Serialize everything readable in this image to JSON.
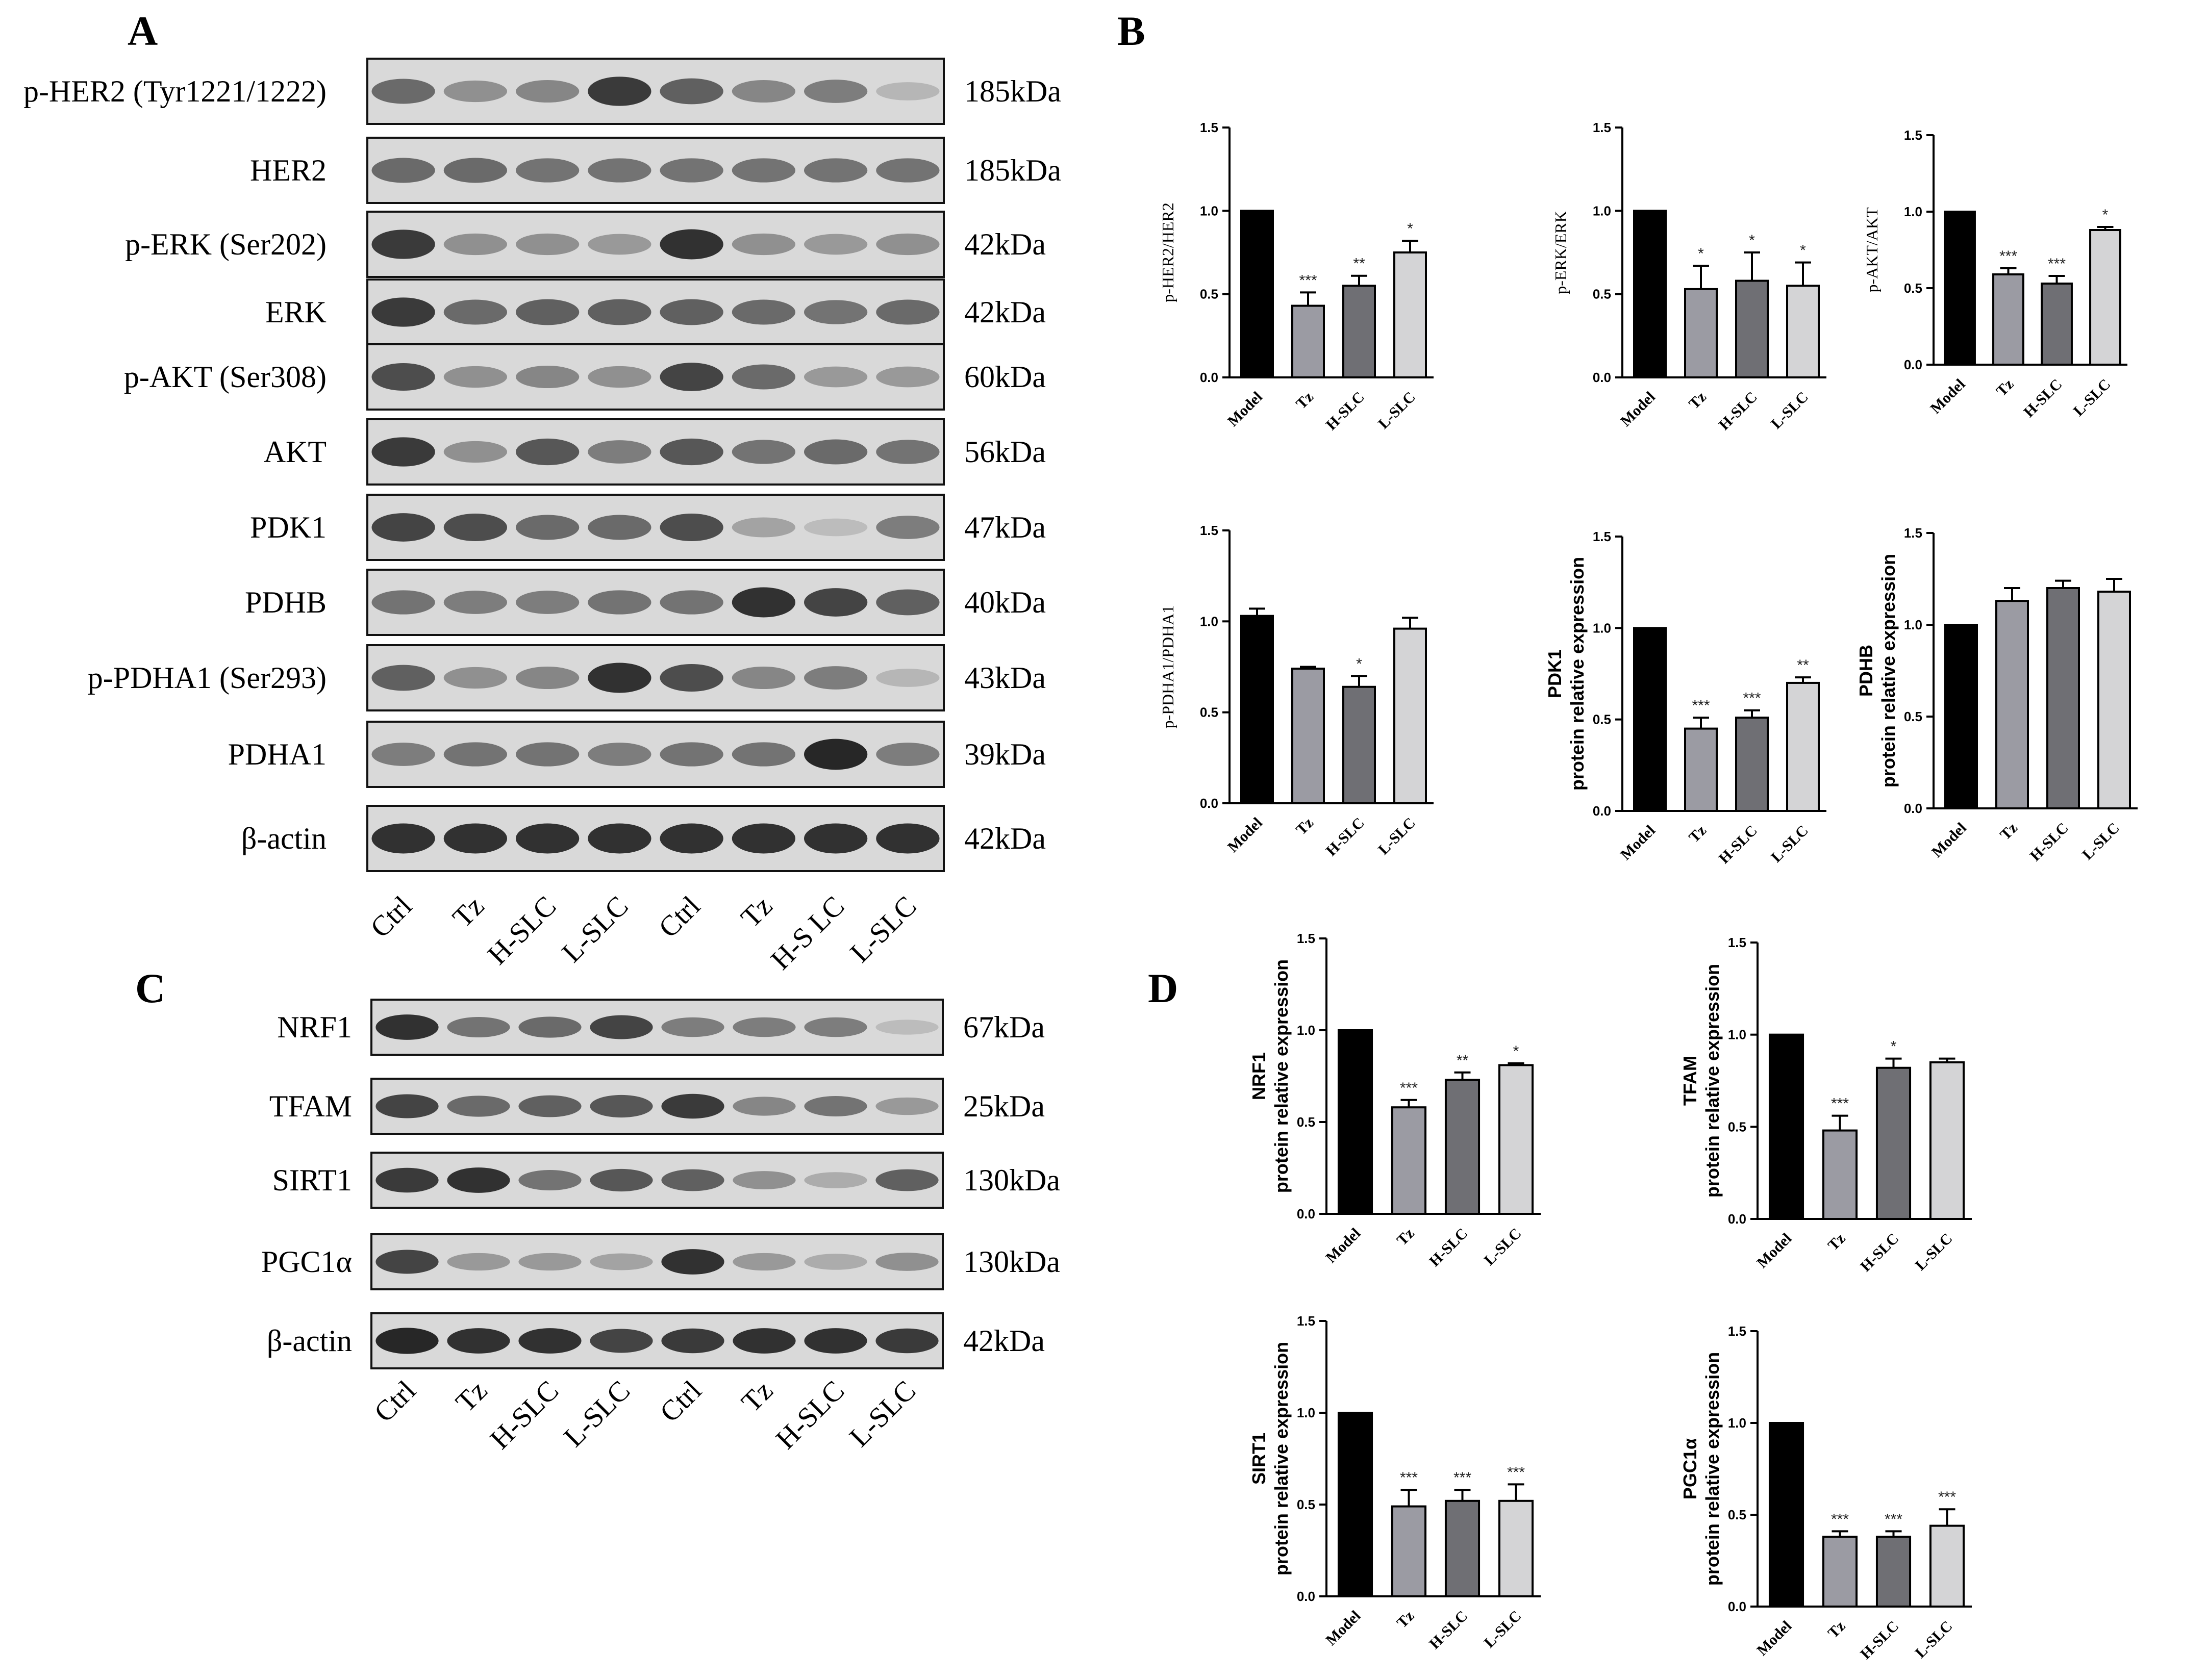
{
  "panels": {
    "A": "A",
    "B": "B",
    "C": "C",
    "D": "D"
  },
  "blots_A": {
    "rows": [
      {
        "label": "p-HER2 (Tyr1221/1222)",
        "kda": "185kDa",
        "shade": [
          0.55,
          0.35,
          0.4,
          0.8,
          0.6,
          0.4,
          0.45,
          0.15
        ]
      },
      {
        "label": "HER2",
        "kda": "185kDa",
        "shade": [
          0.55,
          0.55,
          0.5,
          0.5,
          0.5,
          0.5,
          0.5,
          0.5
        ]
      },
      {
        "label": "p-ERK (Ser202)",
        "kda": "42kDa",
        "shade": [
          0.8,
          0.35,
          0.35,
          0.3,
          0.85,
          0.35,
          0.3,
          0.35
        ]
      },
      {
        "label": "ERK",
        "kda": "42kDa",
        "shade": [
          0.8,
          0.55,
          0.6,
          0.6,
          0.6,
          0.55,
          0.5,
          0.55
        ]
      },
      {
        "label": "p-AKT (Ser308)",
        "kda": "60kDa",
        "shade": [
          0.7,
          0.35,
          0.4,
          0.35,
          0.75,
          0.55,
          0.3,
          0.3
        ]
      },
      {
        "label": "AKT",
        "kda": "56kDa",
        "shade": [
          0.8,
          0.35,
          0.65,
          0.45,
          0.65,
          0.5,
          0.55,
          0.5
        ]
      },
      {
        "label": "PDK1",
        "kda": "47kDa",
        "shade": [
          0.75,
          0.7,
          0.55,
          0.55,
          0.7,
          0.25,
          0.12,
          0.45
        ]
      },
      {
        "label": "PDHB",
        "kda": "40kDa",
        "shade": [
          0.5,
          0.45,
          0.45,
          0.5,
          0.5,
          0.85,
          0.75,
          0.6
        ]
      },
      {
        "label": "p-PDHA1 (Ser293)",
        "kda": "43kDa",
        "shade": [
          0.6,
          0.35,
          0.4,
          0.85,
          0.7,
          0.4,
          0.45,
          0.15
        ]
      },
      {
        "label": "PDHA1",
        "kda": "39kDa",
        "shade": [
          0.45,
          0.5,
          0.5,
          0.45,
          0.5,
          0.5,
          0.9,
          0.45
        ]
      },
      {
        "label": "β-actin",
        "kda": "42kDa",
        "shade": [
          0.85,
          0.85,
          0.85,
          0.85,
          0.85,
          0.85,
          0.85,
          0.85
        ]
      }
    ],
    "lanes": [
      "Ctrl",
      "Tz",
      "H-SLC",
      "L-SLC",
      "Ctrl",
      "Tz",
      "H-S LC",
      "L-SLC"
    ]
  },
  "blots_C": {
    "rows": [
      {
        "label": "NRF1",
        "kda": "67kDa",
        "shade": [
          0.85,
          0.5,
          0.55,
          0.75,
          0.45,
          0.45,
          0.45,
          0.12
        ]
      },
      {
        "label": "TFAM",
        "kda": "25kDa",
        "shade": [
          0.75,
          0.55,
          0.6,
          0.65,
          0.8,
          0.4,
          0.5,
          0.3
        ]
      },
      {
        "label": "SIRT1",
        "kda": "130kDa",
        "shade": [
          0.8,
          0.85,
          0.5,
          0.65,
          0.6,
          0.35,
          0.2,
          0.6
        ]
      },
      {
        "label": "PGC1α",
        "kda": "130kDa",
        "shade": [
          0.75,
          0.3,
          0.3,
          0.25,
          0.85,
          0.3,
          0.2,
          0.35
        ]
      },
      {
        "label": "β-actin",
        "kda": "42kDa",
        "shade": [
          0.9,
          0.85,
          0.85,
          0.75,
          0.8,
          0.85,
          0.85,
          0.8
        ]
      }
    ],
    "lanes": [
      "Ctrl",
      "Tz",
      "H-SLC",
      "L-SLC",
      "Ctrl",
      "Tz",
      "H-SLC",
      "L-SLC"
    ]
  },
  "colors": {
    "bars": [
      "#000000",
      "#9b9ba3",
      "#6f6f74",
      "#d4d4d6"
    ]
  },
  "chart_data": [
    {
      "type": "bar",
      "ylabel": "p-HER2/HER2",
      "categories": [
        "Model",
        "Tz",
        "H-SLC",
        "L-SLC"
      ],
      "values": [
        1.0,
        0.43,
        0.55,
        0.75
      ],
      "errors": [
        0,
        0.08,
        0.06,
        0.07
      ],
      "sig": [
        "",
        "***",
        "**",
        "*"
      ],
      "ylim": [
        0,
        1.5
      ],
      "yticks": [
        "0.0",
        "0.5",
        "1.0",
        "1.5"
      ]
    },
    {
      "type": "bar",
      "ylabel": "p-ERK/ERK",
      "categories": [
        "Model",
        "Tz",
        "H-SLC",
        "L-SLC"
      ],
      "values": [
        1.0,
        0.53,
        0.58,
        0.55
      ],
      "errors": [
        0,
        0.14,
        0.17,
        0.14
      ],
      "sig": [
        "",
        "*",
        "*",
        "*"
      ],
      "ylim": [
        0,
        1.5
      ],
      "yticks": [
        "0.0",
        "0.5",
        "1.0",
        "1.5"
      ]
    },
    {
      "type": "bar",
      "ylabel": "p-AKT/AKT",
      "categories": [
        "Model",
        "Tz",
        "H-SLC",
        "L-SLC"
      ],
      "values": [
        1.0,
        0.59,
        0.53,
        0.88
      ],
      "errors": [
        0,
        0.04,
        0.05,
        0.02
      ],
      "sig": [
        "",
        "***",
        "***",
        "*"
      ],
      "ylim": [
        0,
        1.5
      ],
      "yticks": [
        "0.0",
        "0.5",
        "1.0",
        "1.5"
      ]
    },
    {
      "type": "bar",
      "ylabel": "p-PDHA1/PDHA1",
      "categories": [
        "Model",
        "Tz",
        "H-SLC",
        "L-SLC"
      ],
      "values": [
        1.03,
        0.74,
        0.64,
        0.96
      ],
      "errors": [
        0.04,
        0.01,
        0.06,
        0.06
      ],
      "sig": [
        "",
        "",
        "*",
        ""
      ],
      "ylim": [
        0,
        1.5
      ],
      "yticks": [
        "0.0",
        "0.5",
        "1.0",
        "1.5"
      ]
    },
    {
      "type": "bar",
      "ylabel": [
        "PDK1",
        "protein relative expression"
      ],
      "categories": [
        "Model",
        "Tz",
        "H-SLC",
        "L-SLC"
      ],
      "values": [
        1.0,
        0.45,
        0.51,
        0.7
      ],
      "errors": [
        0,
        0.06,
        0.04,
        0.03
      ],
      "sig": [
        "",
        "***",
        "***",
        "**"
      ],
      "ylim": [
        0,
        1.5
      ],
      "yticks": [
        "0.0",
        "0.5",
        "1.0",
        "1.5"
      ]
    },
    {
      "type": "bar",
      "ylabel": [
        "PDHB",
        "protein relative expression"
      ],
      "categories": [
        "Model",
        "Tz",
        "H-SLC",
        "L-SLC"
      ],
      "values": [
        1.0,
        1.13,
        1.2,
        1.18
      ],
      "errors": [
        0,
        0.07,
        0.04,
        0.07
      ],
      "sig": [
        "",
        "",
        "",
        ""
      ],
      "ylim": [
        0,
        1.5
      ],
      "yticks": [
        "0.0",
        "0.5",
        "1.0",
        "1.5"
      ]
    },
    {
      "type": "bar",
      "ylabel": [
        "NRF1",
        "protein relative expression"
      ],
      "categories": [
        "Model",
        "Tz",
        "H-SLC",
        "L-SLC"
      ],
      "values": [
        1.0,
        0.58,
        0.73,
        0.81
      ],
      "errors": [
        0,
        0.04,
        0.04,
        0.01
      ],
      "sig": [
        "",
        "***",
        "**",
        "*"
      ],
      "ylim": [
        0,
        1.5
      ],
      "yticks": [
        "0.0",
        "0.5",
        "1.0",
        "1.5"
      ]
    },
    {
      "type": "bar",
      "ylabel": [
        "TFAM",
        "protein relative expression"
      ],
      "categories": [
        "Model",
        "Tz",
        "H-SLC",
        "L-SLC"
      ],
      "values": [
        1.0,
        0.48,
        0.82,
        0.85
      ],
      "errors": [
        0,
        0.08,
        0.05,
        0.02
      ],
      "sig": [
        "",
        "***",
        "*",
        ""
      ],
      "ylim": [
        0,
        1.5
      ],
      "yticks": [
        "0.0",
        "0.5",
        "1.0",
        "1.5"
      ]
    },
    {
      "type": "bar",
      "ylabel": [
        "SIRT1",
        "protein relative expression"
      ],
      "categories": [
        "Model",
        "Tz",
        "H-SLC",
        "L-SLC"
      ],
      "values": [
        1.0,
        0.49,
        0.52,
        0.52
      ],
      "errors": [
        0,
        0.09,
        0.06,
        0.09
      ],
      "sig": [
        "",
        "***",
        "***",
        "***"
      ],
      "ylim": [
        0,
        1.5
      ],
      "yticks": [
        "0.0",
        "0.5",
        "1.0",
        "1.5"
      ]
    },
    {
      "type": "bar",
      "ylabel": [
        "PGC1α",
        "protein relative expression"
      ],
      "categories": [
        "Model",
        "Tz",
        "H-SLC",
        "L-SLC"
      ],
      "values": [
        1.0,
        0.38,
        0.38,
        0.44
      ],
      "errors": [
        0,
        0.03,
        0.03,
        0.09
      ],
      "sig": [
        "",
        "***",
        "***",
        "***"
      ],
      "ylim": [
        0,
        1.5
      ],
      "yticks": [
        "0.0",
        "0.5",
        "1.0",
        "1.5"
      ]
    }
  ]
}
